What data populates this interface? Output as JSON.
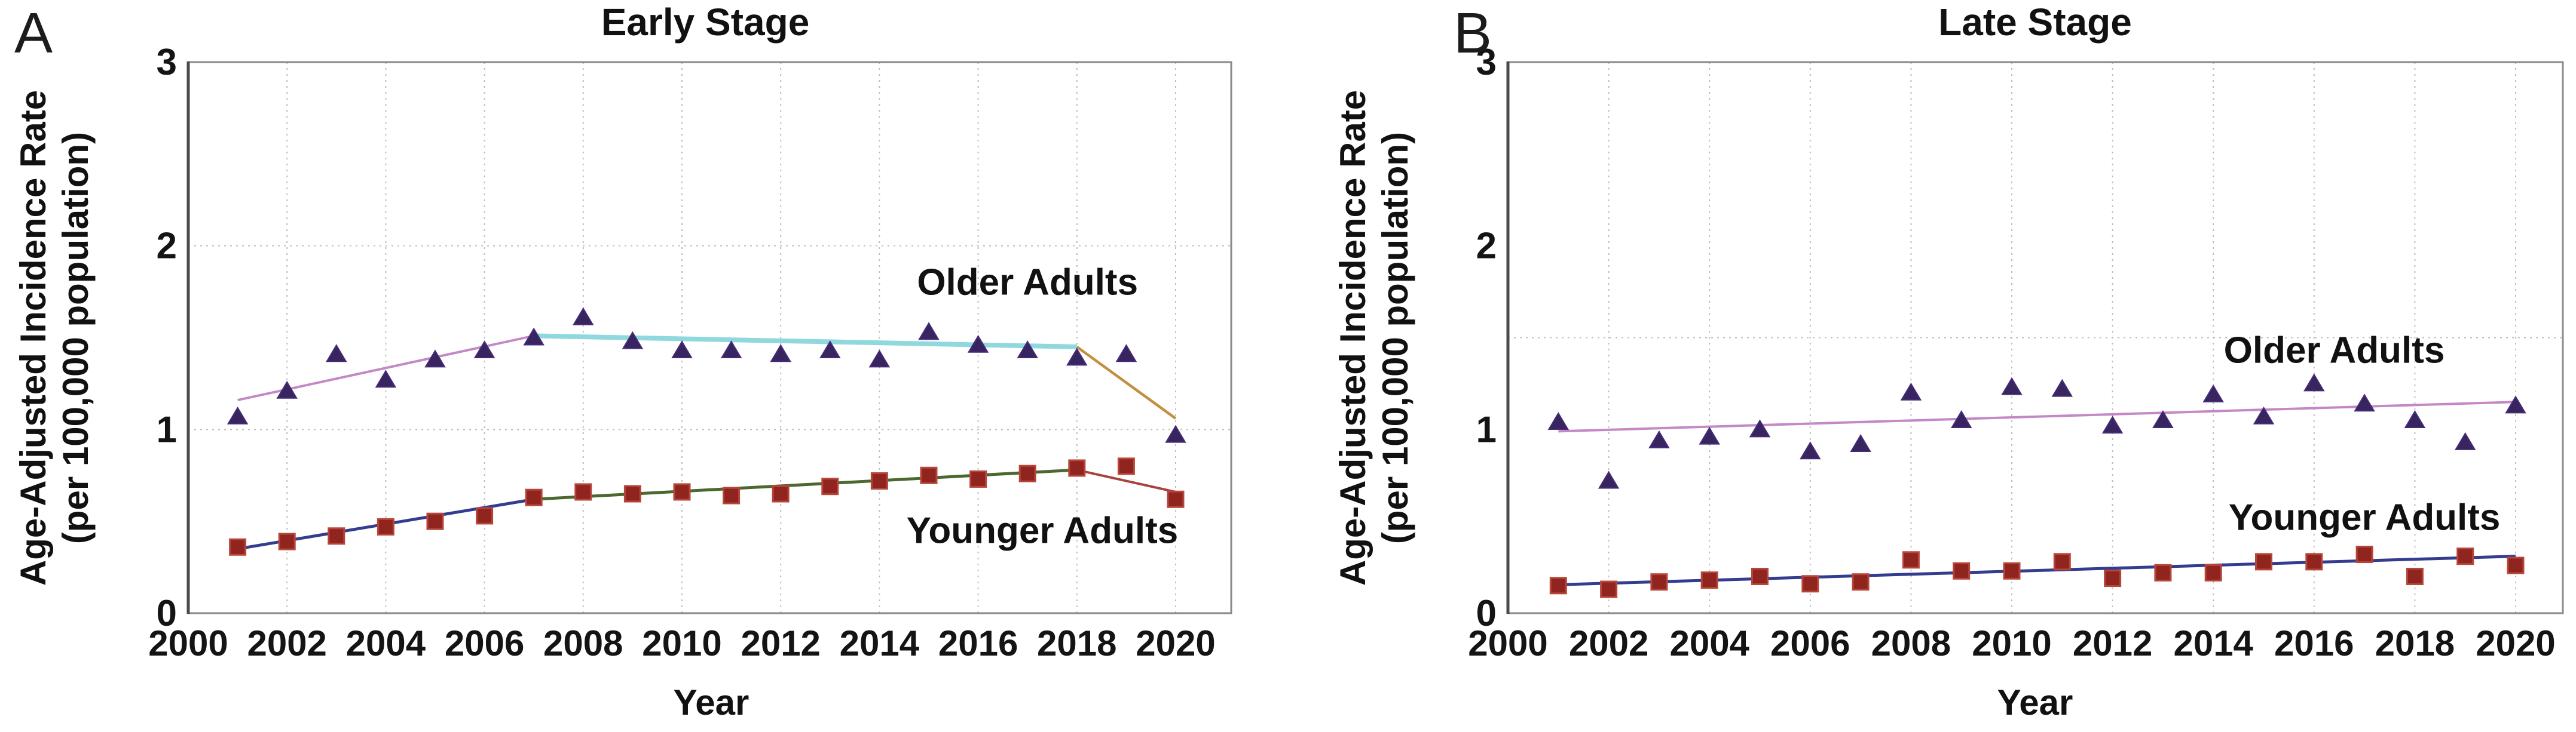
{
  "figure": {
    "kind": "two-panel joinpoint scatter chart",
    "background": "#ffffff"
  },
  "shared": {
    "x_axis_label": "Year",
    "y_axis_label_line1": "Age-Adjusted Incidence Rate",
    "y_axis_label_line2": "(per 100,000 population)",
    "x_tick_labels": [
      "2000",
      "2002",
      "2004",
      "2006",
      "2008",
      "2010",
      "2012",
      "2014",
      "2016",
      "2018",
      "2020"
    ],
    "y_tick_labels": [
      "0",
      "1",
      "2",
      "3"
    ]
  },
  "colors": {
    "triangle_marker": "#38245f",
    "triangle_stroke": "#472c7a",
    "square_marker": "#8f251e",
    "square_stroke": "#b8453a",
    "gridline": "#bdbdbd",
    "axis_box": "#8a8a8a",
    "axis_left": "#4a4a4a",
    "text": "#141414",
    "trend_pink": "#c488c6",
    "trend_cyan": "#8fd8de",
    "trend_orange": "#c28f43",
    "trend_navy": "#333c8e",
    "trend_green": "#4c682f",
    "trend_red": "#a8423f"
  },
  "chart_data": [
    {
      "panel_letter": "A",
      "title": "Early Stage",
      "type": "scatter",
      "xlabel": "Year",
      "ylabel": "Age-Adjusted Incidence Rate (per 100,000 population)",
      "xlim": [
        2000,
        2021
      ],
      "ylim": [
        0,
        3
      ],
      "x": [
        2001,
        2002,
        2003,
        2004,
        2005,
        2006,
        2007,
        2008,
        2009,
        2010,
        2011,
        2012,
        2013,
        2014,
        2015,
        2016,
        2017,
        2018,
        2019,
        2020
      ],
      "h_gridlines": [
        1,
        2
      ],
      "v_gridlines": [
        2002,
        2004,
        2006,
        2008,
        2010,
        2012,
        2014,
        2016,
        2018,
        2020
      ],
      "series": [
        {
          "name": "Older Adults",
          "marker": "triangle",
          "color": "#38245f",
          "values": [
            1.07,
            1.21,
            1.41,
            1.27,
            1.38,
            1.43,
            1.5,
            1.61,
            1.48,
            1.43,
            1.43,
            1.41,
            1.43,
            1.38,
            1.53,
            1.46,
            1.43,
            1.39,
            1.41,
            0.97
          ]
        },
        {
          "name": "Younger Adults",
          "marker": "square",
          "color": "#8f251e",
          "values": [
            0.36,
            0.39,
            0.42,
            0.47,
            0.5,
            0.53,
            0.63,
            0.66,
            0.65,
            0.66,
            0.64,
            0.65,
            0.69,
            0.72,
            0.75,
            0.73,
            0.76,
            0.79,
            0.8,
            0.62
          ]
        }
      ],
      "trend_segments": [
        {
          "series": "Older Adults",
          "color": "#c488c6",
          "thickness": 4,
          "from": [
            2001,
            1.16
          ],
          "to": [
            2007,
            1.51
          ]
        },
        {
          "series": "Older Adults",
          "color": "#8fd8de",
          "thickness": 8,
          "from": [
            2007,
            1.51
          ],
          "to": [
            2018,
            1.45
          ]
        },
        {
          "series": "Older Adults",
          "color": "#c28f43",
          "thickness": 4.5,
          "from": [
            2018,
            1.45
          ],
          "to": [
            2020,
            1.06
          ]
        },
        {
          "series": "Younger Adults",
          "color": "#333c8e",
          "thickness": 5,
          "from": [
            2001,
            0.35
          ],
          "to": [
            2007,
            0.62
          ]
        },
        {
          "series": "Younger Adults",
          "color": "#4c682f",
          "thickness": 5,
          "from": [
            2007,
            0.62
          ],
          "to": [
            2018,
            0.78
          ]
        },
        {
          "series": "Younger Adults",
          "color": "#a8423f",
          "thickness": 4,
          "from": [
            2018,
            0.78
          ],
          "to": [
            2020,
            0.66
          ]
        }
      ],
      "annotations": [
        {
          "text": "Older Adults",
          "x": 2017.0,
          "y": 1.8
        },
        {
          "text": "Younger Adults",
          "x": 2017.3,
          "y": 0.45
        }
      ]
    },
    {
      "panel_letter": "B",
      "title": "Late Stage",
      "type": "scatter",
      "xlabel": "Year",
      "ylabel": "Age-Adjusted Incidence Rate (per 100,000 population)",
      "xlim": [
        2000,
        2021
      ],
      "ylim": [
        0,
        3
      ],
      "x": [
        2001,
        2002,
        2003,
        2004,
        2005,
        2006,
        2007,
        2008,
        2009,
        2010,
        2011,
        2012,
        2013,
        2014,
        2015,
        2016,
        2017,
        2018,
        2019,
        2020
      ],
      "h_gridlines": [
        1.5
      ],
      "v_gridlines": [
        2002,
        2004,
        2006,
        2008,
        2010,
        2012,
        2014,
        2016,
        2018,
        2020
      ],
      "series": [
        {
          "name": "Older Adults",
          "marker": "triangle",
          "color": "#38245f",
          "values": [
            1.04,
            0.72,
            0.94,
            0.96,
            1.0,
            0.88,
            0.92,
            1.2,
            1.05,
            1.23,
            1.22,
            1.02,
            1.05,
            1.19,
            1.07,
            1.25,
            1.14,
            1.05,
            0.93,
            1.13
          ]
        },
        {
          "name": "Younger Adults",
          "marker": "square",
          "color": "#8f251e",
          "values": [
            0.15,
            0.13,
            0.17,
            0.18,
            0.2,
            0.16,
            0.17,
            0.29,
            0.23,
            0.23,
            0.28,
            0.19,
            0.22,
            0.22,
            0.28,
            0.28,
            0.32,
            0.2,
            0.31,
            0.26
          ]
        }
      ],
      "trend_segments": [
        {
          "series": "Older Adults",
          "color": "#c488c6",
          "thickness": 4,
          "from": [
            2001,
            0.99
          ],
          "to": [
            2020,
            1.15
          ]
        },
        {
          "series": "Younger Adults",
          "color": "#333c8e",
          "thickness": 5,
          "from": [
            2001,
            0.155
          ],
          "to": [
            2020,
            0.31
          ]
        }
      ],
      "annotations": [
        {
          "text": "Older Adults",
          "x": 2016.4,
          "y": 1.43
        },
        {
          "text": "Younger Adults",
          "x": 2017.0,
          "y": 0.52
        }
      ]
    }
  ]
}
